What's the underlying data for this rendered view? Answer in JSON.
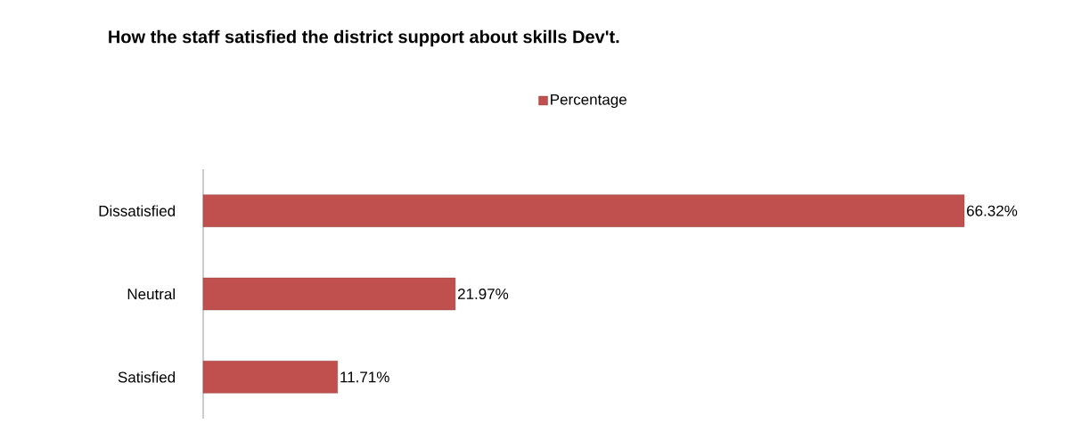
{
  "chart_data": {
    "type": "bar",
    "orientation": "horizontal",
    "title": "How the staff satisfied the district support about skills Dev't.",
    "categories": [
      "Dissatisfied",
      "Neutral",
      "Satisfied"
    ],
    "series": [
      {
        "name": "Percentage",
        "color": "#c0504d",
        "values": [
          66.32,
          21.97,
          11.71
        ],
        "value_labels": [
          "66.32%",
          "21.97%",
          "11.71%"
        ]
      }
    ],
    "legend": "top"
  }
}
